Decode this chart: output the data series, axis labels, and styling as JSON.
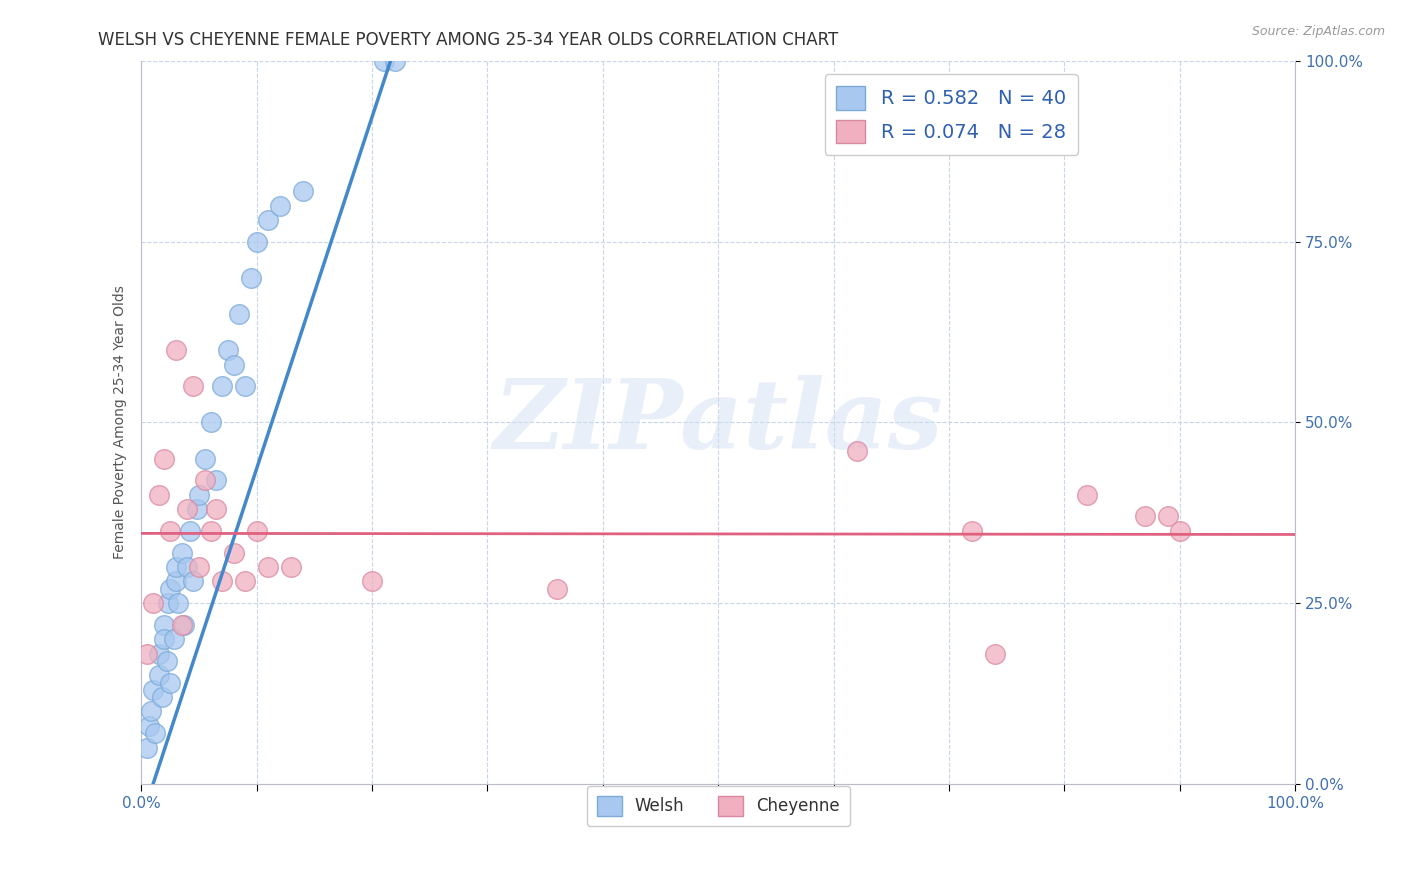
{
  "title": "WELSH VS CHEYENNE FEMALE POVERTY AMONG 25-34 YEAR OLDS CORRELATION CHART",
  "source": "Source: ZipAtlas.com",
  "ylabel": "Female Poverty Among 25-34 Year Olds",
  "xlim": [
    0,
    1
  ],
  "ylim": [
    0,
    1
  ],
  "xticks": [
    0.0,
    0.1,
    0.2,
    0.3,
    0.4,
    0.5,
    0.6,
    0.7,
    0.8,
    0.9,
    1.0
  ],
  "yticks": [
    0.0,
    0.25,
    0.5,
    0.75,
    1.0
  ],
  "ytick_labels": [
    "0.0%",
    "25.0%",
    "50.0%",
    "75.0%",
    "100.0%"
  ],
  "welsh_color": "#a8c8f0",
  "welsh_edge_color": "#7aaad8",
  "cheyenne_color": "#f0b0c0",
  "cheyenne_edge_color": "#d888a0",
  "welsh_line_color": "#4488cc",
  "cheyenne_line_color": "#e06080",
  "welsh_R": 0.582,
  "welsh_N": 40,
  "cheyenne_R": 0.074,
  "cheyenne_N": 28,
  "welsh_x": [
    0.005,
    0.007,
    0.008,
    0.01,
    0.012,
    0.015,
    0.015,
    0.018,
    0.02,
    0.02,
    0.022,
    0.023,
    0.025,
    0.025,
    0.028,
    0.03,
    0.03,
    0.032,
    0.035,
    0.037,
    0.04,
    0.042,
    0.045,
    0.048,
    0.05,
    0.055,
    0.06,
    0.065,
    0.07,
    0.075,
    0.08,
    0.085,
    0.09,
    0.095,
    0.1,
    0.11,
    0.12,
    0.14,
    0.21,
    0.22
  ],
  "welsh_y": [
    0.05,
    0.08,
    0.1,
    0.13,
    0.07,
    0.15,
    0.18,
    0.12,
    0.22,
    0.2,
    0.17,
    0.25,
    0.14,
    0.27,
    0.2,
    0.28,
    0.3,
    0.25,
    0.32,
    0.22,
    0.3,
    0.35,
    0.28,
    0.38,
    0.4,
    0.45,
    0.5,
    0.42,
    0.55,
    0.6,
    0.58,
    0.65,
    0.55,
    0.7,
    0.75,
    0.78,
    0.8,
    0.82,
    1.0,
    1.0
  ],
  "cheyenne_x": [
    0.005,
    0.01,
    0.015,
    0.02,
    0.025,
    0.03,
    0.035,
    0.04,
    0.045,
    0.05,
    0.055,
    0.06,
    0.065,
    0.07,
    0.08,
    0.09,
    0.1,
    0.11,
    0.13,
    0.2,
    0.36,
    0.62,
    0.72,
    0.74,
    0.82,
    0.87,
    0.89,
    0.9
  ],
  "cheyenne_y": [
    0.18,
    0.25,
    0.4,
    0.45,
    0.35,
    0.6,
    0.22,
    0.38,
    0.55,
    0.3,
    0.42,
    0.35,
    0.38,
    0.28,
    0.32,
    0.28,
    0.35,
    0.3,
    0.3,
    0.28,
    0.27,
    0.46,
    0.35,
    0.18,
    0.4,
    0.37,
    0.37,
    0.35
  ],
  "background_color": "#ffffff",
  "grid_color": "#c8d4e8",
  "watermark_text": "ZIPatlas",
  "watermark_color_zip": "#c0cce0",
  "watermark_color_atlas": "#b8d0e8",
  "title_fontsize": 12,
  "axis_fontsize": 10,
  "tick_fontsize": 11,
  "legend_fontsize": 14
}
